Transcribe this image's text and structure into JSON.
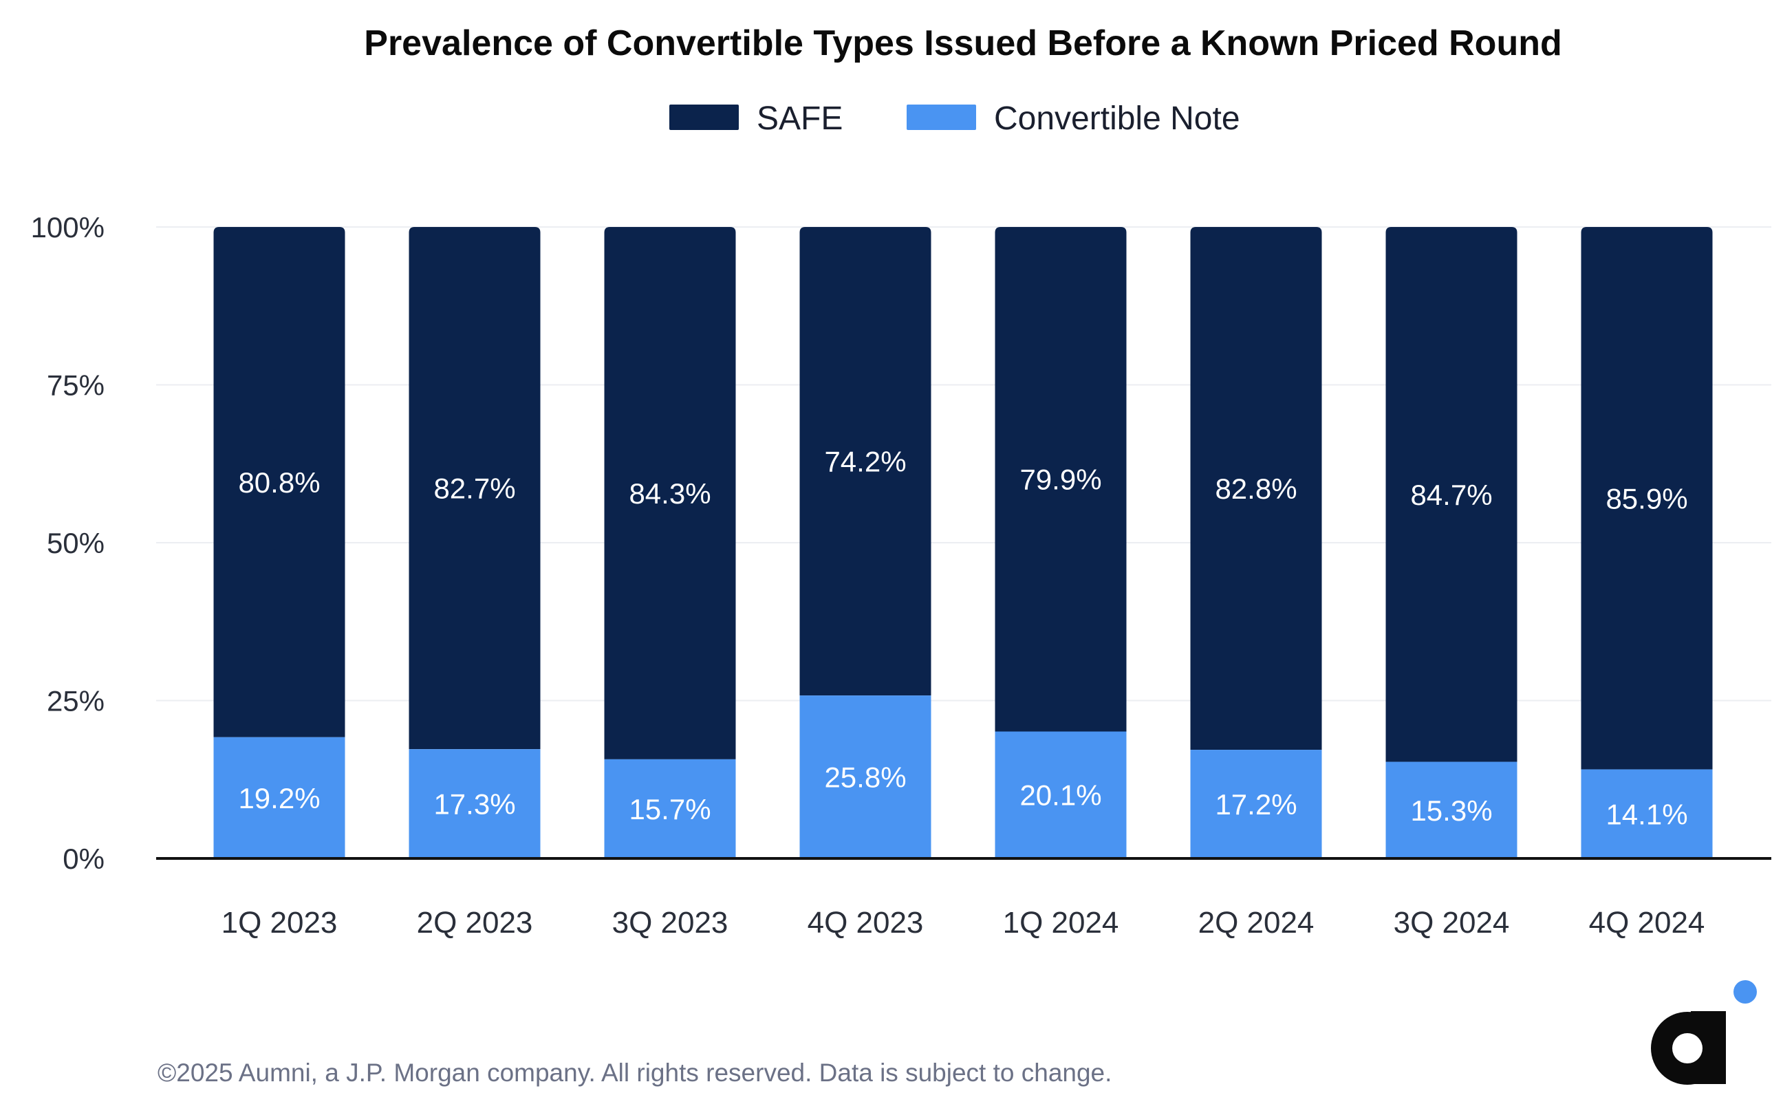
{
  "chart_data": {
    "type": "bar",
    "stacked": true,
    "title": "Prevalence of Convertible Types Issued Before a Known Priced Round",
    "categories": [
      "1Q 2023",
      "2Q 2023",
      "3Q 2023",
      "4Q 2023",
      "1Q 2024",
      "2Q 2024",
      "3Q 2024",
      "4Q 2024"
    ],
    "series": [
      {
        "name": "Convertible Note",
        "color": "#4a94f2",
        "values": [
          19.2,
          17.3,
          15.7,
          25.8,
          20.1,
          17.2,
          15.3,
          14.1
        ],
        "labels": [
          "19.2%",
          "17.3%",
          "15.7%",
          "25.8%",
          "20.1%",
          "17.2%",
          "15.3%",
          "14.1%"
        ]
      },
      {
        "name": "SAFE",
        "color": "#0b234c",
        "values": [
          80.8,
          82.7,
          84.3,
          74.2,
          79.9,
          82.8,
          84.7,
          85.9
        ],
        "labels": [
          "80.8%",
          "82.7%",
          "84.3%",
          "74.2%",
          "79.9%",
          "82.8%",
          "84.7%",
          "85.9%"
        ]
      }
    ],
    "legend": [
      {
        "name": "SAFE",
        "color": "#0b234c"
      },
      {
        "name": "Convertible Note",
        "color": "#4a94f2"
      }
    ],
    "legend_position": "top-center",
    "ylim": [
      0,
      100
    ],
    "yticks": [
      0,
      25,
      50,
      75,
      100
    ],
    "ytick_labels": [
      "0%",
      "25%",
      "50%",
      "75%",
      "100%"
    ],
    "xlabel": "",
    "ylabel": "",
    "grid": true
  },
  "footer": {
    "copyright": "©2025 Aumni, a J.P. Morgan company. All rights reserved. Data is subject to change."
  },
  "logo": {
    "text": "a",
    "dot_color": "#4a94f2",
    "color": "#0b0b0b",
    "icon": "aumni-logo-icon"
  }
}
